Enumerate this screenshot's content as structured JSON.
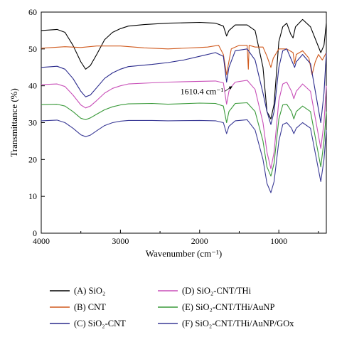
{
  "chart_data": {
    "type": "line",
    "xlabel": "Wavenumber (cm⁻¹)",
    "ylabel": "Transmittance (%)",
    "xlim": [
      4000,
      400
    ],
    "ylim": [
      0,
      60
    ],
    "x_ticks": [
      4000,
      3000,
      2000,
      1000
    ],
    "x_tick_labels": [
      "4000",
      "3000",
      "2000",
      "1000"
    ],
    "y_ticks": [
      0,
      10,
      20,
      30,
      40,
      50,
      60
    ],
    "y_tick_labels": [
      "0",
      "10",
      "20",
      "30",
      "40",
      "50",
      "60"
    ],
    "grid": false,
    "legend_position": "bottom",
    "annotation": {
      "text": "1610.4 cm⁻¹",
      "x": 1610,
      "y": 38.5
    },
    "series": [
      {
        "name": "(A) SiO₂",
        "color": "#000000",
        "points": [
          [
            4000,
            55
          ],
          [
            3800,
            55.3
          ],
          [
            3700,
            54.5
          ],
          [
            3600,
            51
          ],
          [
            3500,
            46.5
          ],
          [
            3440,
            44.5
          ],
          [
            3380,
            45.5
          ],
          [
            3300,
            48.5
          ],
          [
            3200,
            52.5
          ],
          [
            3100,
            54.5
          ],
          [
            3000,
            55.5
          ],
          [
            2900,
            56.2
          ],
          [
            2700,
            56.6
          ],
          [
            2400,
            57
          ],
          [
            2000,
            57.2
          ],
          [
            1800,
            57
          ],
          [
            1700,
            56.2
          ],
          [
            1660,
            53.5
          ],
          [
            1630,
            55
          ],
          [
            1550,
            56.5
          ],
          [
            1400,
            56.5
          ],
          [
            1300,
            55
          ],
          [
            1200,
            45
          ],
          [
            1150,
            33
          ],
          [
            1100,
            31
          ],
          [
            1060,
            35
          ],
          [
            1000,
            52
          ],
          [
            950,
            56
          ],
          [
            900,
            57
          ],
          [
            850,
            54
          ],
          [
            820,
            53
          ],
          [
            790,
            56
          ],
          [
            700,
            58
          ],
          [
            600,
            56
          ],
          [
            470,
            49
          ],
          [
            430,
            51
          ],
          [
            400,
            57
          ]
        ]
      },
      {
        "name": "(B) CNT",
        "color": "#d05a1e",
        "points": [
          [
            4000,
            50.2
          ],
          [
            3700,
            50.6
          ],
          [
            3500,
            50.4
          ],
          [
            3300,
            50.8
          ],
          [
            3000,
            50.8
          ],
          [
            2700,
            50.3
          ],
          [
            2400,
            50
          ],
          [
            2000,
            50.4
          ],
          [
            1900,
            50.5
          ],
          [
            1760,
            51
          ],
          [
            1700,
            48.5
          ],
          [
            1660,
            43
          ],
          [
            1640,
            45.5
          ],
          [
            1600,
            50
          ],
          [
            1500,
            51
          ],
          [
            1400,
            51
          ],
          [
            1385,
            44.5
          ],
          [
            1375,
            51
          ],
          [
            1300,
            50.5
          ],
          [
            1200,
            50.5
          ],
          [
            1150,
            48
          ],
          [
            1100,
            45
          ],
          [
            1070,
            47.5
          ],
          [
            1000,
            50
          ],
          [
            900,
            50
          ],
          [
            820,
            49
          ],
          [
            800,
            46
          ],
          [
            780,
            48.5
          ],
          [
            700,
            49.5
          ],
          [
            620,
            47.5
          ],
          [
            580,
            43
          ],
          [
            540,
            46.5
          ],
          [
            500,
            48.5
          ],
          [
            450,
            47
          ],
          [
            400,
            49
          ]
        ]
      },
      {
        "name": "(C) SiO₂-CNT",
        "color": "#2a2a8c",
        "points": [
          [
            4000,
            45
          ],
          [
            3800,
            45.3
          ],
          [
            3700,
            44.5
          ],
          [
            3600,
            42
          ],
          [
            3500,
            38.5
          ],
          [
            3440,
            37
          ],
          [
            3380,
            37.5
          ],
          [
            3300,
            39.5
          ],
          [
            3200,
            42
          ],
          [
            3100,
            43.5
          ],
          [
            3000,
            44.5
          ],
          [
            2900,
            45.2
          ],
          [
            2600,
            45.8
          ],
          [
            2400,
            46.3
          ],
          [
            2200,
            47
          ],
          [
            2000,
            48
          ],
          [
            1800,
            49
          ],
          [
            1700,
            48
          ],
          [
            1660,
            41
          ],
          [
            1630,
            45
          ],
          [
            1550,
            49.5
          ],
          [
            1400,
            50
          ],
          [
            1300,
            47
          ],
          [
            1200,
            38
          ],
          [
            1150,
            33
          ],
          [
            1100,
            29.5
          ],
          [
            1060,
            33
          ],
          [
            1000,
            45
          ],
          [
            950,
            49.5
          ],
          [
            900,
            50
          ],
          [
            830,
            46.5
          ],
          [
            800,
            45
          ],
          [
            780,
            46.5
          ],
          [
            700,
            48.5
          ],
          [
            600,
            46
          ],
          [
            470,
            30
          ],
          [
            430,
            38
          ],
          [
            400,
            49
          ]
        ]
      },
      {
        "name": "(D) SiO₂-CNT/THi",
        "color": "#c84fb8",
        "points": [
          [
            4000,
            40.3
          ],
          [
            3800,
            40.5
          ],
          [
            3700,
            39.8
          ],
          [
            3600,
            37.5
          ],
          [
            3500,
            34.8
          ],
          [
            3440,
            34
          ],
          [
            3380,
            34.5
          ],
          [
            3300,
            36
          ],
          [
            3200,
            38
          ],
          [
            3100,
            39.3
          ],
          [
            3000,
            40
          ],
          [
            2900,
            40.5
          ],
          [
            2600,
            40.8
          ],
          [
            2400,
            41
          ],
          [
            2000,
            41.2
          ],
          [
            1800,
            41.3
          ],
          [
            1700,
            40.8
          ],
          [
            1660,
            35
          ],
          [
            1630,
            38.5
          ],
          [
            1610,
            39.5
          ],
          [
            1550,
            41
          ],
          [
            1400,
            41.5
          ],
          [
            1300,
            39
          ],
          [
            1200,
            30
          ],
          [
            1150,
            22
          ],
          [
            1100,
            17.5
          ],
          [
            1060,
            22
          ],
          [
            1000,
            36
          ],
          [
            950,
            40.5
          ],
          [
            900,
            41
          ],
          [
            840,
            38.5
          ],
          [
            810,
            36.5
          ],
          [
            780,
            38.5
          ],
          [
            700,
            40.5
          ],
          [
            600,
            38.5
          ],
          [
            470,
            23
          ],
          [
            430,
            30
          ],
          [
            400,
            40
          ]
        ]
      },
      {
        "name": "(E) SiO₂-CNT/THi/AuNP",
        "color": "#3a9a3a",
        "points": [
          [
            4000,
            34.9
          ],
          [
            3800,
            35
          ],
          [
            3700,
            34.5
          ],
          [
            3600,
            33
          ],
          [
            3500,
            31.2
          ],
          [
            3440,
            30.8
          ],
          [
            3380,
            31.3
          ],
          [
            3300,
            32.3
          ],
          [
            3200,
            33.5
          ],
          [
            3100,
            34.3
          ],
          [
            3000,
            34.8
          ],
          [
            2900,
            35.1
          ],
          [
            2600,
            35.2
          ],
          [
            2400,
            35
          ],
          [
            2000,
            35.3
          ],
          [
            1800,
            35.2
          ],
          [
            1700,
            34.5
          ],
          [
            1660,
            30
          ],
          [
            1630,
            33
          ],
          [
            1550,
            35.2
          ],
          [
            1400,
            35.4
          ],
          [
            1300,
            33
          ],
          [
            1200,
            25
          ],
          [
            1150,
            18
          ],
          [
            1100,
            15.5
          ],
          [
            1060,
            19
          ],
          [
            1000,
            31
          ],
          [
            950,
            34.8
          ],
          [
            900,
            35
          ],
          [
            840,
            33
          ],
          [
            810,
            31
          ],
          [
            780,
            33
          ],
          [
            700,
            34.5
          ],
          [
            600,
            33
          ],
          [
            470,
            18
          ],
          [
            430,
            25
          ],
          [
            400,
            33
          ]
        ]
      },
      {
        "name": "(F) SiO₂-CNT/THi/AuNP/GOx",
        "color": "#3a3a96",
        "points": [
          [
            4000,
            30.5
          ],
          [
            3800,
            30.7
          ],
          [
            3700,
            30
          ],
          [
            3600,
            28.5
          ],
          [
            3500,
            26.7
          ],
          [
            3440,
            26.2
          ],
          [
            3380,
            26.6
          ],
          [
            3300,
            27.8
          ],
          [
            3200,
            29.2
          ],
          [
            3100,
            30
          ],
          [
            3000,
            30.4
          ],
          [
            2900,
            30.6
          ],
          [
            2600,
            30.6
          ],
          [
            2400,
            30.5
          ],
          [
            2000,
            30.6
          ],
          [
            1800,
            30.5
          ],
          [
            1700,
            30
          ],
          [
            1660,
            27
          ],
          [
            1630,
            29
          ],
          [
            1550,
            30.5
          ],
          [
            1400,
            30.8
          ],
          [
            1300,
            28
          ],
          [
            1200,
            20
          ],
          [
            1150,
            13.5
          ],
          [
            1100,
            11
          ],
          [
            1060,
            14
          ],
          [
            1000,
            25
          ],
          [
            950,
            29.5
          ],
          [
            900,
            30
          ],
          [
            840,
            28.5
          ],
          [
            810,
            27
          ],
          [
            780,
            28.5
          ],
          [
            700,
            30
          ],
          [
            600,
            28.5
          ],
          [
            470,
            14
          ],
          [
            430,
            20
          ],
          [
            400,
            28
          ]
        ]
      }
    ]
  }
}
